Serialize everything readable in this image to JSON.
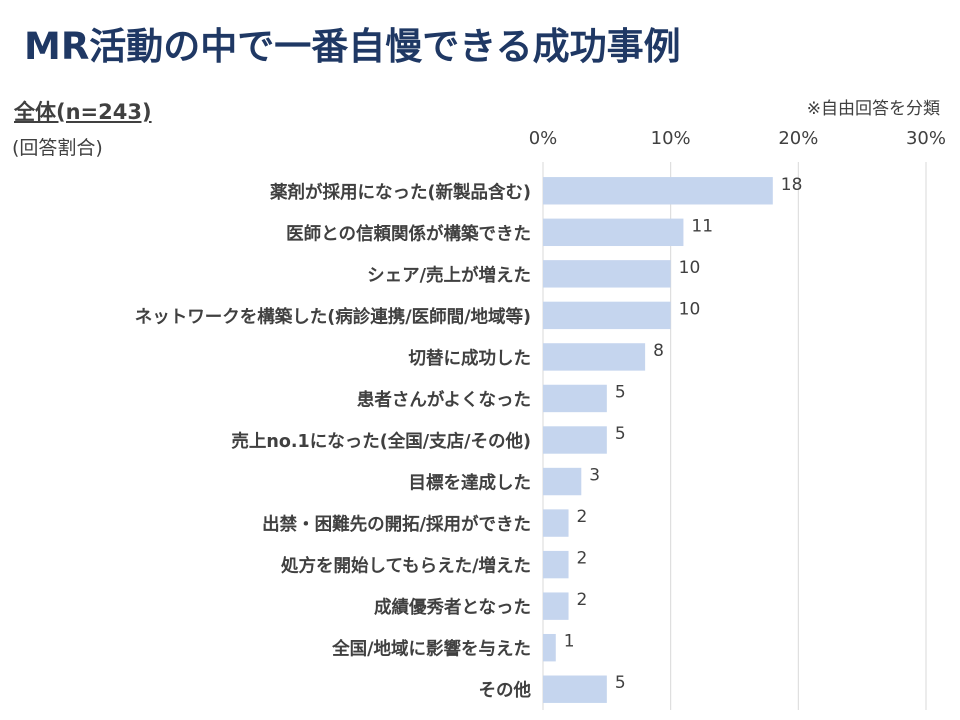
{
  "title": "MR活動の中で一番自慢できる成功事例",
  "base_label": "全体(n=243)",
  "sub_label": "(回答割合)",
  "note": "※自由回答を分類",
  "colors": {
    "title": "#1f3864",
    "bar": "#c5d5ee",
    "grid": "#d9d9d9",
    "text": "#404040"
  },
  "chart_data": {
    "type": "bar",
    "orientation": "horizontal",
    "categories": [
      "薬剤が採用になった(新製品含む)",
      "医師との信頼関係が構築できた",
      "シェア/売上が増えた",
      "ネットワークを構築した(病診連携/医師間/地域等)",
      "切替に成功した",
      "患者さんがよくなった",
      "売上no.1になった(全国/支店/その他)",
      "目標を達成した",
      "出禁・困難先の開拓/採用ができた",
      "処方を開始してもらえた/増えた",
      "成績優秀者となった",
      "全国/地域に影響を与えた",
      "その他"
    ],
    "values": [
      18,
      11,
      10,
      10,
      8,
      5,
      5,
      3,
      2,
      2,
      2,
      1,
      5
    ],
    "value_labels": [
      "18",
      "11",
      "10",
      "10",
      "8",
      "5",
      "5",
      "3",
      "2",
      "2",
      "2",
      "1",
      "5"
    ],
    "xlim": [
      0,
      30
    ],
    "xticks": [
      "0%",
      "10%",
      "20%",
      "30%"
    ],
    "grid": true
  }
}
